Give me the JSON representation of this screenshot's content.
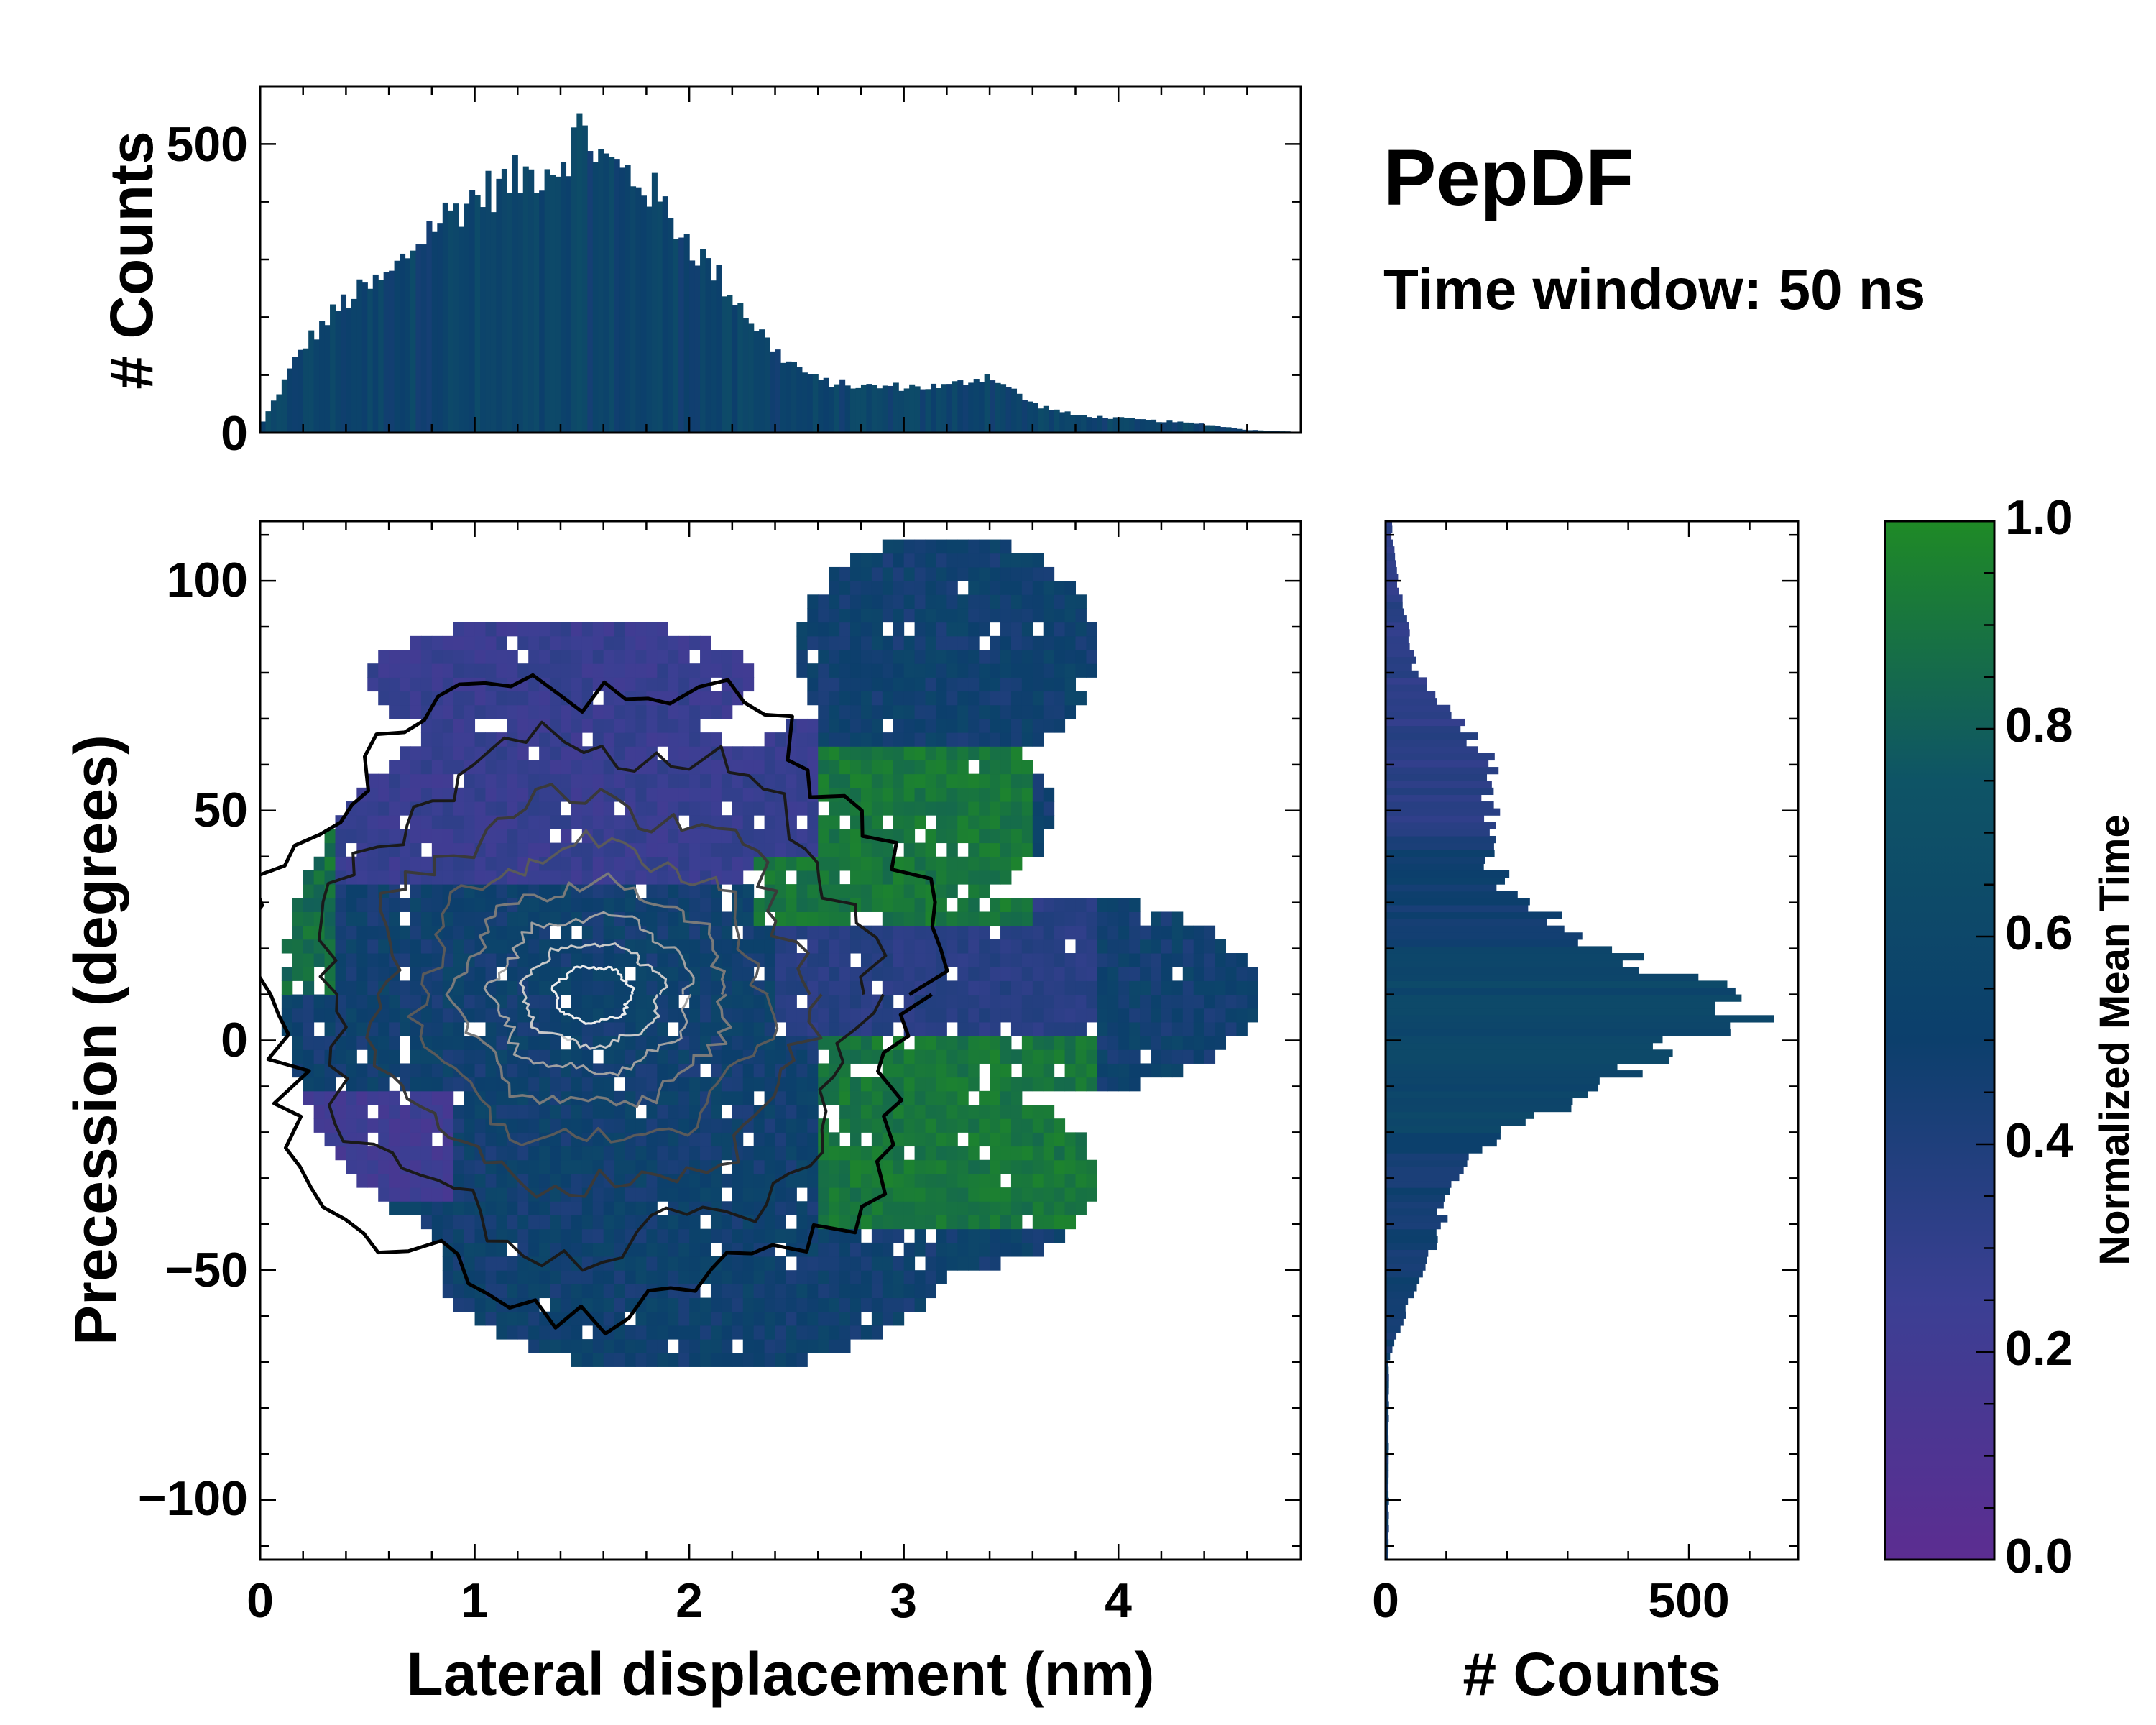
{
  "chart_data": [
    {
      "type": "histogram",
      "panel": "top-marginal",
      "xlabel": "",
      "ylabel": "# Counts",
      "xlim": [
        0,
        4.85
      ],
      "ylim": [
        0,
        600
      ],
      "yticks": [
        "0",
        "500"
      ],
      "bin_width": 0.025,
      "x": [
        0.0,
        0.2,
        0.4,
        0.6,
        0.8,
        1.0,
        1.2,
        1.4,
        1.5,
        1.6,
        1.8,
        2.0,
        2.2,
        2.4,
        2.6,
        2.8,
        3.0,
        3.2,
        3.4,
        3.6,
        3.8,
        4.0,
        4.2,
        4.4,
        4.6,
        4.8
      ],
      "counts": [
        10,
        150,
        230,
        270,
        360,
        410,
        440,
        470,
        530,
        470,
        430,
        330,
        240,
        140,
        90,
        80,
        80,
        80,
        100,
        50,
        30,
        25,
        20,
        15,
        5,
        2
      ]
    },
    {
      "type": "heatmap",
      "panel": "main",
      "xlabel": "Lateral displacement (nm)",
      "ylabel": "Precession (degrees)",
      "xlim": [
        0,
        4.85
      ],
      "ylim": [
        -113,
        113
      ],
      "xticks": [
        "0",
        "1",
        "2",
        "3",
        "4"
      ],
      "yticks": [
        "100",
        "50",
        "0",
        "−50",
        "−100"
      ],
      "value_label": "Normalized Mean Time",
      "density_peak": {
        "x": 1.5,
        "y": 10
      }
    },
    {
      "type": "histogram",
      "panel": "right-marginal",
      "orientation": "horizontal",
      "xlabel": "# Counts",
      "ylabel": "",
      "xlim": [
        0,
        680
      ],
      "ylim": [
        -113,
        113
      ],
      "xticks": [
        "0",
        "500"
      ],
      "bin_width": 1.5,
      "y": [
        -70,
        -60,
        -50,
        -40,
        -30,
        -20,
        -10,
        0,
        5,
        10,
        15,
        20,
        30,
        40,
        50,
        60,
        70,
        80,
        90,
        100,
        110
      ],
      "counts": [
        5,
        30,
        60,
        90,
        110,
        200,
        350,
        500,
        590,
        560,
        460,
        350,
        230,
        160,
        170,
        170,
        120,
        50,
        35,
        20,
        10
      ]
    }
  ],
  "figure": {
    "title": "PepDF",
    "subtitle": "Time window: 50 ns"
  },
  "colorbar": {
    "label": "Normalized Mean Time",
    "range": [
      0.0,
      1.0
    ],
    "ticks": [
      "0.0",
      "0.2",
      "0.4",
      "0.6",
      "0.8",
      "1.0"
    ],
    "colors": [
      "#5c2d91",
      "#3b3f93",
      "#0c3f6c",
      "#0e5466",
      "#1f8a26"
    ]
  }
}
